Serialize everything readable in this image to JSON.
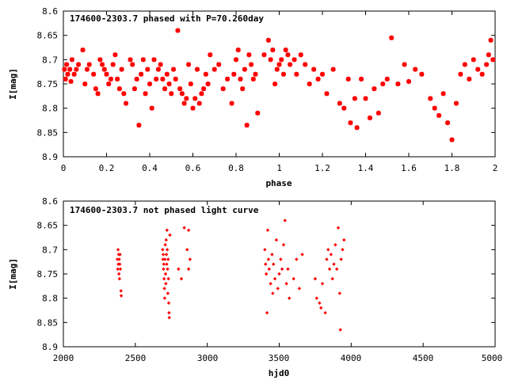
{
  "chart_data": [
    {
      "type": "scatter",
      "title": "174600-2303.7 phased with P=70.260day",
      "xlabel": "phase",
      "ylabel": "I[mag]",
      "xlim": [
        0,
        2
      ],
      "ylim": [
        8.6,
        8.9
      ],
      "y_inverted": true,
      "xticks": [
        "0",
        "0.2",
        "0.4",
        "0.6",
        "0.8",
        "1",
        "1.2",
        "1.4",
        "1.6",
        "1.8",
        "2"
      ],
      "yticks": [
        "8.6",
        "8.65",
        "8.7",
        "8.75",
        "8.8",
        "8.85",
        "8.9"
      ],
      "marker_color": "#ff0000",
      "marker": "star",
      "points": [
        [
          0.005,
          8.72
        ],
        [
          0.01,
          8.74
        ],
        [
          0.015,
          8.71
        ],
        [
          0.02,
          8.73
        ],
        [
          0.03,
          8.72
        ],
        [
          0.035,
          8.745
        ],
        [
          0.04,
          8.7
        ],
        [
          0.05,
          8.73
        ],
        [
          0.06,
          8.72
        ],
        [
          0.07,
          8.71
        ],
        [
          0.09,
          8.68
        ],
        [
          0.1,
          8.75
        ],
        [
          0.11,
          8.72
        ],
        [
          0.12,
          8.71
        ],
        [
          0.14,
          8.73
        ],
        [
          0.15,
          8.76
        ],
        [
          0.16,
          8.77
        ],
        [
          0.17,
          8.7
        ],
        [
          0.18,
          8.71
        ],
        [
          0.19,
          8.72
        ],
        [
          0.2,
          8.73
        ],
        [
          0.21,
          8.75
        ],
        [
          0.22,
          8.74
        ],
        [
          0.23,
          8.71
        ],
        [
          0.24,
          8.69
        ],
        [
          0.25,
          8.74
        ],
        [
          0.26,
          8.76
        ],
        [
          0.27,
          8.72
        ],
        [
          0.28,
          8.77
        ],
        [
          0.29,
          8.79
        ],
        [
          0.31,
          8.7
        ],
        [
          0.32,
          8.71
        ],
        [
          0.33,
          8.76
        ],
        [
          0.34,
          8.74
        ],
        [
          0.35,
          8.835
        ],
        [
          0.36,
          8.73
        ],
        [
          0.37,
          8.7
        ],
        [
          0.38,
          8.77
        ],
        [
          0.39,
          8.72
        ],
        [
          0.4,
          8.75
        ],
        [
          0.41,
          8.8
        ],
        [
          0.42,
          8.7
        ],
        [
          0.43,
          8.74
        ],
        [
          0.44,
          8.72
        ],
        [
          0.45,
          8.71
        ],
        [
          0.46,
          8.74
        ],
        [
          0.47,
          8.76
        ],
        [
          0.48,
          8.73
        ],
        [
          0.49,
          8.75
        ],
        [
          0.5,
          8.77
        ],
        [
          0.51,
          8.72
        ],
        [
          0.52,
          8.74
        ],
        [
          0.53,
          8.64
        ],
        [
          0.54,
          8.76
        ],
        [
          0.55,
          8.77
        ],
        [
          0.56,
          8.79
        ],
        [
          0.57,
          8.78
        ],
        [
          0.58,
          8.71
        ],
        [
          0.59,
          8.75
        ],
        [
          0.6,
          8.8
        ],
        [
          0.61,
          8.78
        ],
        [
          0.62,
          8.72
        ],
        [
          0.63,
          8.79
        ],
        [
          0.64,
          8.77
        ],
        [
          0.65,
          8.76
        ],
        [
          0.66,
          8.73
        ],
        [
          0.67,
          8.75
        ],
        [
          0.68,
          8.69
        ],
        [
          0.7,
          8.72
        ],
        [
          0.72,
          8.71
        ],
        [
          0.74,
          8.76
        ],
        [
          0.76,
          8.74
        ],
        [
          0.78,
          8.79
        ],
        [
          0.79,
          8.73
        ],
        [
          0.8,
          8.7
        ],
        [
          0.81,
          8.68
        ],
        [
          0.82,
          8.74
        ],
        [
          0.83,
          8.76
        ],
        [
          0.84,
          8.72
        ],
        [
          0.85,
          8.835
        ],
        [
          0.86,
          8.69
        ],
        [
          0.87,
          8.71
        ],
        [
          0.88,
          8.74
        ],
        [
          0.89,
          8.73
        ],
        [
          0.9,
          8.81
        ],
        [
          0.93,
          8.69
        ],
        [
          0.95,
          8.66
        ],
        [
          0.96,
          8.7
        ],
        [
          0.97,
          8.68
        ],
        [
          0.98,
          8.75
        ],
        [
          0.99,
          8.72
        ],
        [
          1.0,
          8.71
        ],
        [
          1.01,
          8.7
        ],
        [
          1.02,
          8.73
        ],
        [
          1.03,
          8.68
        ],
        [
          1.04,
          8.69
        ],
        [
          1.05,
          8.71
        ],
        [
          1.07,
          8.7
        ],
        [
          1.08,
          8.73
        ],
        [
          1.1,
          8.69
        ],
        [
          1.12,
          8.71
        ],
        [
          1.14,
          8.75
        ],
        [
          1.16,
          8.72
        ],
        [
          1.18,
          8.74
        ],
        [
          1.2,
          8.73
        ],
        [
          1.22,
          8.77
        ],
        [
          1.25,
          8.72
        ],
        [
          1.28,
          8.79
        ],
        [
          1.3,
          8.8
        ],
        [
          1.32,
          8.74
        ],
        [
          1.33,
          8.83
        ],
        [
          1.35,
          8.78
        ],
        [
          1.36,
          8.84
        ],
        [
          1.38,
          8.74
        ],
        [
          1.4,
          8.78
        ],
        [
          1.42,
          8.82
        ],
        [
          1.44,
          8.76
        ],
        [
          1.46,
          8.81
        ],
        [
          1.48,
          8.75
        ],
        [
          1.5,
          8.74
        ],
        [
          1.52,
          8.655
        ],
        [
          1.55,
          8.75
        ],
        [
          1.58,
          8.71
        ],
        [
          1.6,
          8.745
        ],
        [
          1.63,
          8.72
        ],
        [
          1.66,
          8.73
        ],
        [
          1.7,
          8.78
        ],
        [
          1.72,
          8.8
        ],
        [
          1.74,
          8.815
        ],
        [
          1.76,
          8.77
        ],
        [
          1.78,
          8.83
        ],
        [
          1.8,
          8.865
        ],
        [
          1.82,
          8.79
        ],
        [
          1.84,
          8.73
        ],
        [
          1.86,
          8.71
        ],
        [
          1.88,
          8.74
        ],
        [
          1.9,
          8.7
        ],
        [
          1.92,
          8.72
        ],
        [
          1.94,
          8.73
        ],
        [
          1.96,
          8.71
        ],
        [
          1.97,
          8.69
        ],
        [
          1.98,
          8.66
        ],
        [
          1.99,
          8.7
        ]
      ]
    },
    {
      "type": "scatter",
      "title": "174600-2303.7 not phased light curve",
      "xlabel": "hjd0",
      "ylabel": "I[mag]",
      "xlim": [
        2000,
        5000
      ],
      "ylim": [
        8.6,
        8.9
      ],
      "y_inverted": true,
      "xticks": [
        "2000",
        "2500",
        "3000",
        "3500",
        "4000",
        "4500",
        "5000"
      ],
      "yticks": [
        "8.6",
        "8.65",
        "8.7",
        "8.75",
        "8.8",
        "8.85",
        "8.9"
      ],
      "marker_color": "#ff0000",
      "marker": "diamond",
      "points": [
        [
          2375,
          8.72
        ],
        [
          2378,
          8.74
        ],
        [
          2380,
          8.7
        ],
        [
          2382,
          8.73
        ],
        [
          2384,
          8.71
        ],
        [
          2386,
          8.75
        ],
        [
          2388,
          8.72
        ],
        [
          2390,
          8.76
        ],
        [
          2392,
          8.73
        ],
        [
          2394,
          8.71
        ],
        [
          2396,
          8.74
        ],
        [
          2400,
          8.785
        ],
        [
          2402,
          8.795
        ],
        [
          2690,
          8.7
        ],
        [
          2692,
          8.72
        ],
        [
          2694,
          8.71
        ],
        [
          2696,
          8.74
        ],
        [
          2698,
          8.73
        ],
        [
          2700,
          8.76
        ],
        [
          2702,
          8.78
        ],
        [
          2704,
          8.8
        ],
        [
          2706,
          8.72
        ],
        [
          2708,
          8.69
        ],
        [
          2710,
          8.75
        ],
        [
          2712,
          8.77
        ],
        [
          2714,
          8.68
        ],
        [
          2716,
          8.71
        ],
        [
          2718,
          8.73
        ],
        [
          2720,
          8.66
        ],
        [
          2722,
          8.7
        ],
        [
          2724,
          8.74
        ],
        [
          2726,
          8.79
        ],
        [
          2728,
          8.72
        ],
        [
          2730,
          8.76
        ],
        [
          2732,
          8.81
        ],
        [
          2734,
          8.83
        ],
        [
          2736,
          8.84
        ],
        [
          2740,
          8.67
        ],
        [
          2800,
          8.74
        ],
        [
          2820,
          8.76
        ],
        [
          2840,
          8.655
        ],
        [
          2860,
          8.7
        ],
        [
          2870,
          8.66
        ],
        [
          2880,
          8.72
        ],
        [
          2870,
          8.74
        ],
        [
          3400,
          8.7
        ],
        [
          3405,
          8.73
        ],
        [
          3410,
          8.75
        ],
        [
          3415,
          8.83
        ],
        [
          3420,
          8.66
        ],
        [
          3425,
          8.72
        ],
        [
          3430,
          8.74
        ],
        [
          3440,
          8.77
        ],
        [
          3450,
          8.71
        ],
        [
          3455,
          8.79
        ],
        [
          3460,
          8.73
        ],
        [
          3470,
          8.76
        ],
        [
          3480,
          8.68
        ],
        [
          3490,
          8.78
        ],
        [
          3500,
          8.75
        ],
        [
          3510,
          8.72
        ],
        [
          3520,
          8.74
        ],
        [
          3530,
          8.69
        ],
        [
          3540,
          8.64
        ],
        [
          3550,
          8.77
        ],
        [
          3560,
          8.74
        ],
        [
          3570,
          8.8
        ],
        [
          3600,
          8.76
        ],
        [
          3620,
          8.72
        ],
        [
          3640,
          8.78
        ],
        [
          3660,
          8.71
        ],
        [
          3750,
          8.76
        ],
        [
          3760,
          8.8
        ],
        [
          3780,
          8.81
        ],
        [
          3790,
          8.82
        ],
        [
          3800,
          8.77
        ],
        [
          3820,
          8.83
        ],
        [
          3830,
          8.72
        ],
        [
          3840,
          8.7
        ],
        [
          3850,
          8.74
        ],
        [
          3860,
          8.71
        ],
        [
          3870,
          8.76
        ],
        [
          3880,
          8.73
        ],
        [
          3890,
          8.69
        ],
        [
          3900,
          8.74
        ],
        [
          3910,
          8.655
        ],
        [
          3920,
          8.79
        ],
        [
          3925,
          8.865
        ],
        [
          3930,
          8.72
        ],
        [
          3940,
          8.7
        ],
        [
          3950,
          8.68
        ]
      ]
    }
  ]
}
